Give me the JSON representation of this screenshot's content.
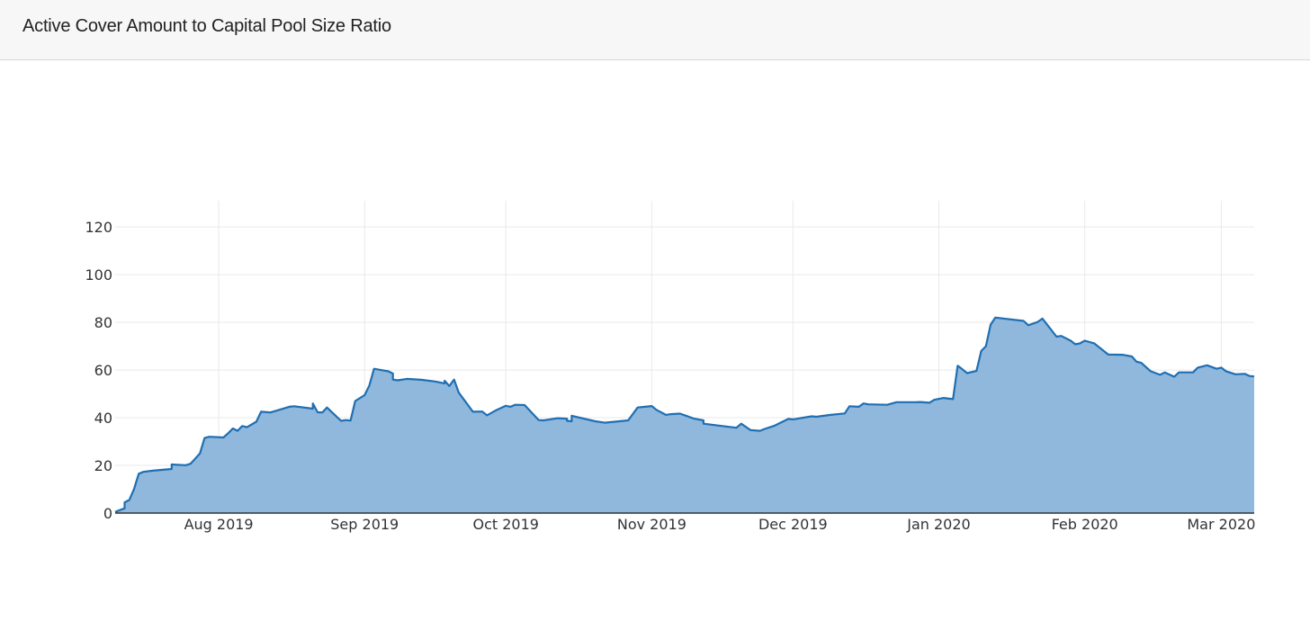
{
  "header": {
    "title": "Active Cover Amount to Capital Pool Size Ratio"
  },
  "colors": {
    "line": "#1f6fb3",
    "fill": "#8fb8dc",
    "grid": "#e9e9e9",
    "axis": "#333333"
  },
  "chart_data": {
    "type": "area",
    "title": "",
    "xlabel": "",
    "ylabel": "",
    "xlim": [
      "2019-07-10",
      "2020-03-08"
    ],
    "ylim": [
      0,
      131
    ],
    "grid": true,
    "legend": "none",
    "x_ticks": [
      {
        "date": "2019-08-01",
        "label": "Aug 2019"
      },
      {
        "date": "2019-09-01",
        "label": "Sep 2019"
      },
      {
        "date": "2019-10-01",
        "label": "Oct 2019"
      },
      {
        "date": "2019-11-01",
        "label": "Nov 2019"
      },
      {
        "date": "2019-12-01",
        "label": "Dec 2019"
      },
      {
        "date": "2020-01-01",
        "label": "Jan 2020"
      },
      {
        "date": "2020-02-01",
        "label": "Feb 2020"
      },
      {
        "date": "2020-03-01",
        "label": "Mar 2020"
      }
    ],
    "y_ticks": [
      0,
      20,
      40,
      60,
      80,
      100,
      120
    ],
    "series": [
      {
        "points": [
          [
            "2019-07-10",
            0.5
          ],
          [
            "2019-07-12",
            2
          ],
          [
            "2019-07-12",
            4.5
          ],
          [
            "2019-07-13",
            5.5
          ],
          [
            "2019-07-14",
            10
          ],
          [
            "2019-07-15",
            16.5
          ],
          [
            "2019-07-16",
            17.3
          ],
          [
            "2019-07-18",
            17.8
          ],
          [
            "2019-07-22",
            18.5
          ],
          [
            "2019-07-22",
            20.4
          ],
          [
            "2019-07-25",
            20.1
          ],
          [
            "2019-07-26",
            20.7
          ],
          [
            "2019-07-27",
            22.8
          ],
          [
            "2019-07-28",
            25
          ],
          [
            "2019-07-29",
            31.5
          ],
          [
            "2019-07-30",
            32
          ],
          [
            "2019-08-02",
            31.7
          ],
          [
            "2019-08-03",
            33.5
          ],
          [
            "2019-08-04",
            35.5
          ],
          [
            "2019-08-05",
            34.5
          ],
          [
            "2019-08-06",
            36.5
          ],
          [
            "2019-08-07",
            36
          ],
          [
            "2019-08-09",
            38.3
          ],
          [
            "2019-08-10",
            42.5
          ],
          [
            "2019-08-12",
            42.2
          ],
          [
            "2019-08-16",
            44.6
          ],
          [
            "2019-08-17",
            44.8
          ],
          [
            "2019-08-21",
            43.8
          ],
          [
            "2019-08-21",
            46
          ],
          [
            "2019-08-22",
            42.3
          ],
          [
            "2019-08-23",
            42.2
          ],
          [
            "2019-08-24",
            44.3
          ],
          [
            "2019-08-26",
            40.5
          ],
          [
            "2019-08-27",
            38.7
          ],
          [
            "2019-08-28",
            39
          ],
          [
            "2019-08-29",
            38.8
          ],
          [
            "2019-08-30",
            47
          ],
          [
            "2019-09-01",
            49.5
          ],
          [
            "2019-09-02",
            53.5
          ],
          [
            "2019-09-03",
            60.5
          ],
          [
            "2019-09-06",
            59.5
          ],
          [
            "2019-09-07",
            58.5
          ],
          [
            "2019-09-07",
            56
          ],
          [
            "2019-09-08",
            55.7
          ],
          [
            "2019-09-10",
            56.3
          ],
          [
            "2019-09-13",
            55.9
          ],
          [
            "2019-09-16",
            55.2
          ],
          [
            "2019-09-18",
            54.4
          ],
          [
            "2019-09-18",
            55.5
          ],
          [
            "2019-09-19",
            53.3
          ],
          [
            "2019-09-20",
            56
          ],
          [
            "2019-09-21",
            50.5
          ],
          [
            "2019-09-24",
            42.5
          ],
          [
            "2019-09-26",
            42.6
          ],
          [
            "2019-09-27",
            41
          ],
          [
            "2019-09-29",
            43.2
          ],
          [
            "2019-10-01",
            45
          ],
          [
            "2019-10-02",
            44.6
          ],
          [
            "2019-10-03",
            45.4
          ],
          [
            "2019-10-05",
            45.3
          ],
          [
            "2019-10-08",
            39
          ],
          [
            "2019-10-09",
            38.9
          ],
          [
            "2019-10-12",
            39.8
          ],
          [
            "2019-10-14",
            39.6
          ],
          [
            "2019-10-14",
            38.7
          ],
          [
            "2019-10-15",
            38.5
          ],
          [
            "2019-10-15",
            40.8
          ],
          [
            "2019-10-20",
            38.5
          ],
          [
            "2019-10-22",
            37.9
          ],
          [
            "2019-10-27",
            38.9
          ],
          [
            "2019-10-29",
            44.3
          ],
          [
            "2019-11-01",
            44.9
          ],
          [
            "2019-11-02",
            43.3
          ],
          [
            "2019-11-04",
            41.2
          ],
          [
            "2019-11-05",
            41.5
          ],
          [
            "2019-11-07",
            41.7
          ],
          [
            "2019-11-10",
            39.6
          ],
          [
            "2019-11-12",
            38.9
          ],
          [
            "2019-11-12",
            37.5
          ],
          [
            "2019-11-16",
            36.5
          ],
          [
            "2019-11-19",
            35.8
          ],
          [
            "2019-11-20",
            37.5
          ],
          [
            "2019-11-22",
            34.8
          ],
          [
            "2019-11-24",
            34.5
          ],
          [
            "2019-11-25",
            35.3
          ],
          [
            "2019-11-27",
            36.6
          ],
          [
            "2019-11-30",
            39.5
          ],
          [
            "2019-12-01",
            39.3
          ],
          [
            "2019-12-05",
            40.6
          ],
          [
            "2019-12-06",
            40.4
          ],
          [
            "2019-12-09",
            41.2
          ],
          [
            "2019-12-12",
            41.8
          ],
          [
            "2019-12-13",
            44.8
          ],
          [
            "2019-12-15",
            44.6
          ],
          [
            "2019-12-16",
            46
          ],
          [
            "2019-12-17",
            45.6
          ],
          [
            "2019-12-21",
            45.4
          ],
          [
            "2019-12-23",
            46.5
          ],
          [
            "2019-12-27",
            46.5
          ],
          [
            "2019-12-28",
            46.6
          ],
          [
            "2019-12-30",
            46.3
          ],
          [
            "2019-12-31",
            47.5
          ],
          [
            "2020-01-02",
            48.3
          ],
          [
            "2020-01-04",
            47.8
          ],
          [
            "2020-01-05",
            61.8
          ],
          [
            "2020-01-06",
            60.3
          ],
          [
            "2020-01-07",
            58.7
          ],
          [
            "2020-01-09",
            59.6
          ],
          [
            "2020-01-10",
            68
          ],
          [
            "2020-01-11",
            70
          ],
          [
            "2020-01-12",
            79
          ],
          [
            "2020-01-13",
            82
          ],
          [
            "2020-01-19",
            80.6
          ],
          [
            "2020-01-20",
            78.8
          ],
          [
            "2020-01-22",
            80.2
          ],
          [
            "2020-01-23",
            81.6
          ],
          [
            "2020-01-26",
            74
          ],
          [
            "2020-01-27",
            74.3
          ],
          [
            "2020-01-29",
            72.3
          ],
          [
            "2020-01-30",
            70.8
          ],
          [
            "2020-01-31",
            71.2
          ],
          [
            "2020-02-01",
            72.3
          ],
          [
            "2020-02-03",
            71.2
          ],
          [
            "2020-02-06",
            66.5
          ],
          [
            "2020-02-09",
            66.4
          ],
          [
            "2020-02-11",
            65.7
          ],
          [
            "2020-02-12",
            63.5
          ],
          [
            "2020-02-13",
            63
          ],
          [
            "2020-02-15",
            59.5
          ],
          [
            "2020-02-17",
            58
          ],
          [
            "2020-02-18",
            59
          ],
          [
            "2020-02-20",
            57.2
          ],
          [
            "2020-02-21",
            59
          ],
          [
            "2020-02-24",
            59
          ],
          [
            "2020-02-25",
            61
          ],
          [
            "2020-02-27",
            62
          ],
          [
            "2020-02-29",
            60.5
          ],
          [
            "2020-03-01",
            61
          ],
          [
            "2020-03-02",
            59.5
          ],
          [
            "2020-03-04",
            58.2
          ],
          [
            "2020-03-06",
            58.4
          ],
          [
            "2020-03-07",
            57.5
          ],
          [
            "2020-03-08",
            57.3
          ]
        ]
      }
    ]
  }
}
